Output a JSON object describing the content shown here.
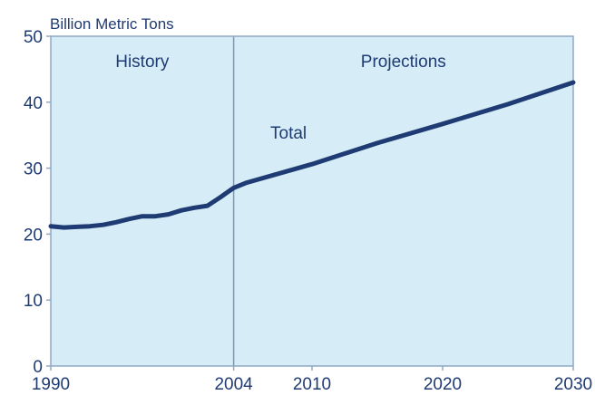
{
  "chart_data": {
    "type": "line",
    "ylabel": "Billion Metric Tons",
    "xlim": [
      1990,
      2030
    ],
    "ylim": [
      0,
      50
    ],
    "x_ticks": [
      1990,
      2004,
      2010,
      2020,
      2030
    ],
    "y_ticks": [
      0,
      10,
      20,
      30,
      40,
      50
    ],
    "x_tick_labels": [
      "1990",
      "2004",
      "2010",
      "2020",
      "2030"
    ],
    "y_tick_labels": [
      "0",
      "10",
      "20",
      "30",
      "40",
      "50"
    ],
    "divider_x": 2004,
    "region_labels": {
      "history": "History",
      "projections": "Projections"
    },
    "series": [
      {
        "name": "Total",
        "x": [
          1990,
          1991,
          1992,
          1993,
          1994,
          1995,
          1996,
          1997,
          1998,
          1999,
          2000,
          2001,
          2002,
          2003,
          2004,
          2005,
          2010,
          2015,
          2020,
          2025,
          2030
        ],
        "y": [
          21.2,
          21.0,
          21.1,
          21.2,
          21.4,
          21.8,
          22.3,
          22.7,
          22.7,
          23.0,
          23.6,
          24.0,
          24.3,
          25.6,
          27.0,
          27.8,
          30.6,
          33.8,
          36.7,
          39.7,
          43.0
        ]
      }
    ],
    "grid": false,
    "legend": "none",
    "colors": {
      "history_bg": "#d6ecf6",
      "projection_bg": "#d6ecf6",
      "line": "#1f3b73",
      "axis": "#8fa8c4",
      "divider": "#7f98b6",
      "text": "#1f3b73"
    }
  }
}
